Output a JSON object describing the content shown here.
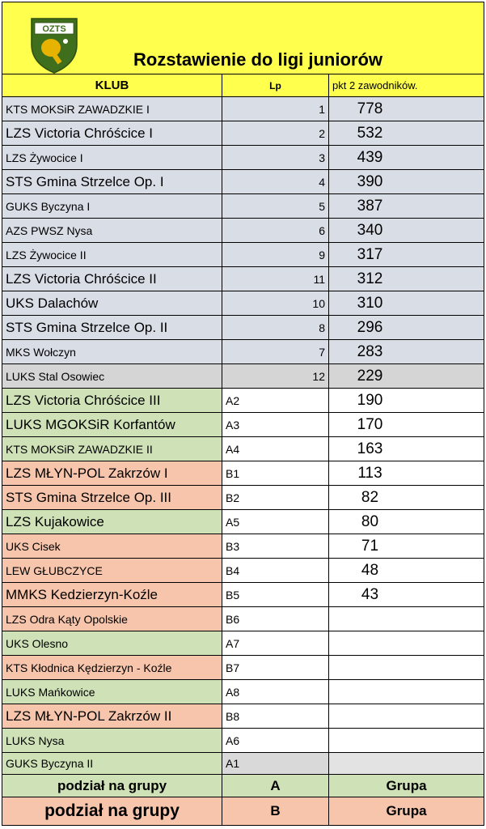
{
  "header": {
    "logo_text": "OZTS",
    "title": "Rozstawienie do ligi juniorów"
  },
  "columns": {
    "club": "KLUB",
    "lp": "Lp",
    "points": "pkt 2 zawodników."
  },
  "rows": [
    {
      "club": "KTS MOKSiR ZAWADZKIE I",
      "lp": "1",
      "points": "778"
    },
    {
      "club": "LZS Victoria Chróścice I",
      "lp": "2",
      "points": "532"
    },
    {
      "club": "LZS Żywocice I",
      "lp": "3",
      "points": "439"
    },
    {
      "club": "STS Gmina Strzelce Op. I",
      "lp": "4",
      "points": "390"
    },
    {
      "club": "GUKS Byczyna I",
      "lp": "5",
      "points": "387"
    },
    {
      "club": "AZS PWSZ Nysa",
      "lp": "6",
      "points": "340"
    },
    {
      "club": "LZS Żywocice II",
      "lp": "9",
      "points": "317"
    },
    {
      "club": "LZS Victoria Chróścice II",
      "lp": "11",
      "points": "312"
    },
    {
      "club": "UKS Dalachów",
      "lp": "10",
      "points": "310"
    },
    {
      "club": "STS Gmina Strzelce Op. II",
      "lp": "8",
      "points": "296"
    },
    {
      "club": "MKS Wołczyn",
      "lp": "7",
      "points": "283"
    },
    {
      "club": "LUKS Stal Osowiec",
      "lp": "12",
      "points": "229"
    },
    {
      "club": "LZS Victoria Chróścice III",
      "lp": "A2",
      "points": "190"
    },
    {
      "club": "LUKS MGOKSiR Korfantów",
      "lp": "A3",
      "points": "170"
    },
    {
      "club": "KTS MOKSiR ZAWADZKIE II",
      "lp": "A4",
      "points": "163"
    },
    {
      "club": "LZS MŁYN-POL Zakrzów I",
      "lp": "B1",
      "points": "113"
    },
    {
      "club": "STS Gmina Strzelce Op. III",
      "lp": "B2",
      "points": "82"
    },
    {
      "club": "LZS Kujakowice",
      "lp": "A5",
      "points": "80"
    },
    {
      "club": "UKS Cisek",
      "lp": "B3",
      "points": "71"
    },
    {
      "club": "LEW GŁUBCZYCE",
      "lp": "B4",
      "points": "48"
    },
    {
      "club": "MMKS Kedzierzyn-Koźle",
      "lp": "B5",
      "points": "43"
    },
    {
      "club": "LZS Odra Kąty Opolskie",
      "lp": "B6",
      "points": ""
    },
    {
      "club": "UKS Olesno",
      "lp": "A7",
      "points": ""
    },
    {
      "club": "KTS Kłodnica Kędzierzyn - Koźle",
      "lp": "B7",
      "points": ""
    },
    {
      "club": "LUKS Mańkowice",
      "lp": "A8",
      "points": ""
    },
    {
      "club": "LZS MŁYN-POL Zakrzów II",
      "lp": "B8",
      "points": ""
    },
    {
      "club": "LUKS Nysa",
      "lp": "A6",
      "points": ""
    },
    {
      "club": "GUKS Byczyna II",
      "lp": "A1",
      "points": ""
    }
  ],
  "footer": {
    "a": {
      "label": "podział na grupy",
      "group": "A",
      "col3": "Grupa"
    },
    "b": {
      "label": "podział na grupy",
      "group": "B",
      "col3": "Grupa"
    }
  },
  "colors": {
    "header_yellow": "#ffff4d",
    "seed_gray_blue": "#d9dde6",
    "group_a_green": "#cfe1b6",
    "group_b_salmon": "#f6c5ab"
  }
}
